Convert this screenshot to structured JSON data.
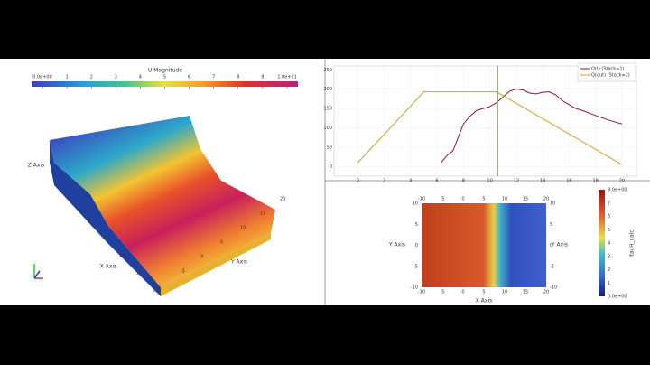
{
  "view_3d": {
    "colorbar": {
      "title": "U Magnitude",
      "ticks": [
        {
          "value": 0,
          "label": "0.0e+00"
        },
        1,
        2,
        3,
        4,
        5,
        6,
        7,
        8,
        9,
        {
          "value": 10,
          "label": "1.0e+01"
        }
      ]
    },
    "x_axis": {
      "label": "X Axis",
      "ticks": [
        0,
        5,
        10,
        15,
        20
      ]
    },
    "y_axis": {
      "label": "Y Axis",
      "ticks": [
        -5,
        0,
        5,
        10,
        15,
        20
      ]
    },
    "z_axis": {
      "label": "Z Axis"
    }
  },
  "chart_data": {
    "type": "line",
    "xlim": [
      -1.8,
      21.1
    ],
    "ylim": [
      -25,
      260
    ],
    "xticks": [
      0,
      2,
      4,
      6,
      8,
      10,
      12,
      14,
      16,
      18,
      20
    ],
    "yticks": [
      0,
      50,
      100,
      150,
      200,
      250
    ],
    "grid": true,
    "legend": "upper-right",
    "vline": {
      "x": 10.6,
      "color": "#6cc24a"
    },
    "series": [
      {
        "name": "Q(t) (Stack=1)",
        "color": "#8b1a2b",
        "x": [
          6.3,
          6.8,
          7.2,
          7.6,
          8,
          8.5,
          9,
          9.5,
          10,
          10.5,
          11,
          11.5,
          12,
          12.5,
          13,
          13.5,
          14,
          14.5,
          15,
          15.5,
          16,
          16.5,
          17,
          18,
          19,
          20
        ],
        "values": [
          10,
          30,
          40,
          75,
          110,
          130,
          145,
          150,
          155,
          165,
          180,
          195,
          200,
          198,
          190,
          188,
          192,
          193,
          185,
          170,
          160,
          150,
          145,
          132,
          120,
          110
        ]
      },
      {
        "name": "Q(out) (Stack=2)",
        "color": "#c9a227",
        "x": [
          0,
          5,
          10.5,
          20
        ],
        "values": [
          10,
          193,
          193,
          5
        ]
      }
    ]
  },
  "slice_view": {
    "x_axis": {
      "label": "X Axis",
      "ticks": [
        -10,
        -5,
        0,
        5,
        10,
        15,
        20
      ],
      "lim": [
        -10,
        20
      ]
    },
    "y_axis": {
      "label": "Y Axis",
      "ticks": [
        -10,
        -5,
        0,
        5,
        10
      ],
      "lim": [
        -10,
        10
      ]
    },
    "colorbar": {
      "title": "tauH_calc",
      "ticks": [
        {
          "value": 0,
          "label": "0.0e+00"
        },
        1,
        2,
        3,
        4,
        5,
        6,
        7,
        {
          "value": 8,
          "label": "8.0e+00"
        }
      ]
    }
  }
}
